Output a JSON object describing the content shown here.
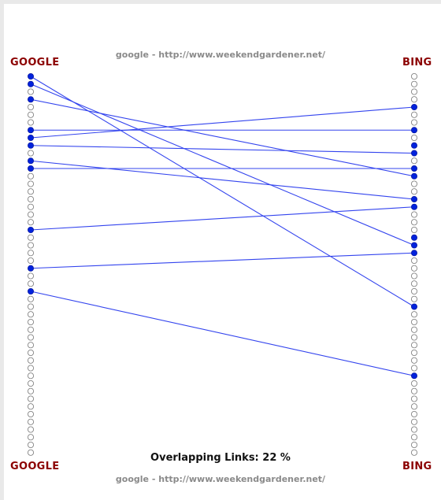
{
  "left_engine": "GOOGLE",
  "right_engine": "BING",
  "caption": "google - http://www.weekendgardener.net/",
  "overlap_label": "Overlapping Links:",
  "overlap_value": "22 %",
  "colors": {
    "engine_label": "#8b0000",
    "link": "#3344ee",
    "filled_dot": "#0022dd",
    "empty_dot": "#777777"
  },
  "diagram": {
    "rows_per_column": 50,
    "links": [
      {
        "left": 0,
        "right": 30
      },
      {
        "left": 1,
        "right": 22
      },
      {
        "left": 3,
        "right": 13
      },
      {
        "left": 7,
        "right": 7
      },
      {
        "left": 8,
        "right": 4
      },
      {
        "left": 9,
        "right": 10
      },
      {
        "left": 11,
        "right": 16
      },
      {
        "left": 12,
        "right": 12
      },
      {
        "left": 20,
        "right": 17
      },
      {
        "left": 25,
        "right": 23
      },
      {
        "left": 28,
        "right": 39
      }
    ],
    "extra_right_filled": [
      9,
      21
    ]
  }
}
